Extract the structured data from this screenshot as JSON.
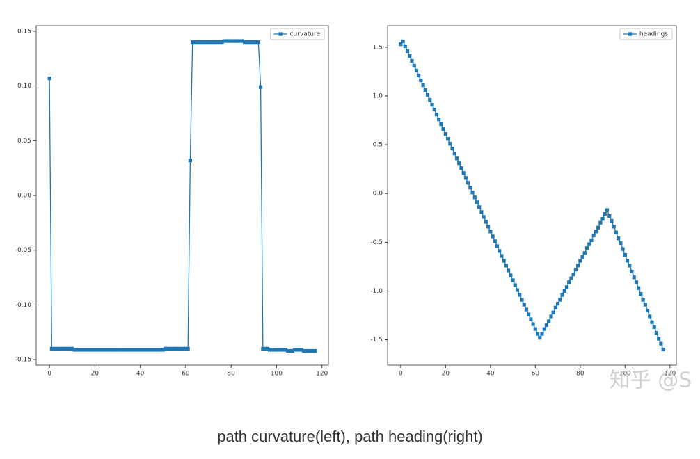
{
  "chart_data": [
    {
      "type": "line",
      "x": [
        0,
        1,
        2,
        3,
        4,
        5,
        6,
        7,
        8,
        9,
        10,
        11,
        12,
        13,
        14,
        15,
        16,
        17,
        18,
        19,
        20,
        21,
        22,
        23,
        24,
        25,
        26,
        27,
        28,
        29,
        30,
        31,
        32,
        33,
        34,
        35,
        36,
        37,
        38,
        39,
        40,
        41,
        42,
        43,
        44,
        45,
        46,
        47,
        48,
        49,
        50,
        51,
        52,
        53,
        54,
        55,
        56,
        57,
        58,
        59,
        60,
        61,
        62,
        63,
        64,
        65,
        66,
        67,
        68,
        69,
        70,
        71,
        72,
        73,
        74,
        75,
        76,
        77,
        78,
        79,
        80,
        81,
        82,
        83,
        84,
        85,
        86,
        87,
        88,
        89,
        90,
        91,
        92,
        93,
        94,
        95,
        96,
        97,
        98,
        99,
        100,
        101,
        102,
        103,
        104,
        105,
        106,
        107,
        108,
        109,
        110,
        111,
        112,
        113,
        114,
        115,
        116,
        117
      ],
      "series": [
        {
          "name": "curvature",
          "color": "#1f77b4",
          "values": [
            0.107,
            -0.14,
            -0.14,
            -0.14,
            -0.14,
            -0.14,
            -0.14,
            -0.14,
            -0.14,
            -0.14,
            -0.14,
            -0.141,
            -0.141,
            -0.141,
            -0.141,
            -0.141,
            -0.141,
            -0.141,
            -0.141,
            -0.141,
            -0.141,
            -0.141,
            -0.141,
            -0.141,
            -0.141,
            -0.141,
            -0.141,
            -0.141,
            -0.141,
            -0.141,
            -0.141,
            -0.141,
            -0.141,
            -0.141,
            -0.141,
            -0.141,
            -0.141,
            -0.141,
            -0.141,
            -0.141,
            -0.141,
            -0.141,
            -0.141,
            -0.141,
            -0.141,
            -0.141,
            -0.141,
            -0.141,
            -0.141,
            -0.141,
            -0.141,
            -0.14,
            -0.14,
            -0.14,
            -0.14,
            -0.14,
            -0.14,
            -0.14,
            -0.14,
            -0.14,
            -0.14,
            -0.14,
            0.032,
            0.14,
            0.14,
            0.14,
            0.14,
            0.14,
            0.14,
            0.14,
            0.14,
            0.14,
            0.14,
            0.14,
            0.14,
            0.14,
            0.14,
            0.141,
            0.141,
            0.141,
            0.141,
            0.141,
            0.141,
            0.141,
            0.141,
            0.141,
            0.14,
            0.14,
            0.14,
            0.14,
            0.14,
            0.14,
            0.14,
            0.099,
            -0.14,
            -0.14,
            -0.14,
            -0.141,
            -0.141,
            -0.141,
            -0.141,
            -0.141,
            -0.141,
            -0.141,
            -0.141,
            -0.142,
            -0.142,
            -0.142,
            -0.141,
            -0.141,
            -0.141,
            -0.141,
            -0.142,
            -0.142,
            -0.142,
            -0.142,
            -0.142,
            -0.142
          ]
        }
      ],
      "xlim": [
        -5.85,
        122.85
      ],
      "ylim": [
        -0.155,
        0.155
      ],
      "xticks": [
        0,
        20,
        40,
        60,
        80,
        100,
        120
      ],
      "yticks": [
        0.15,
        {
          "value": 0.1,
          "label": "0.10"
        },
        0.05,
        {
          "value": 0,
          "label": "0.00"
        },
        -0.05,
        {
          "value": -0.1,
          "label": "-0.10"
        },
        -0.15
      ],
      "legend": "upper right",
      "grid": false
    },
    {
      "type": "line",
      "x": [
        0,
        1,
        2,
        3,
        4,
        5,
        6,
        7,
        8,
        9,
        10,
        11,
        12,
        13,
        14,
        15,
        16,
        17,
        18,
        19,
        20,
        21,
        22,
        23,
        24,
        25,
        26,
        27,
        28,
        29,
        30,
        31,
        32,
        33,
        34,
        35,
        36,
        37,
        38,
        39,
        40,
        41,
        42,
        43,
        44,
        45,
        46,
        47,
        48,
        49,
        50,
        51,
        52,
        53,
        54,
        55,
        56,
        57,
        58,
        59,
        60,
        61,
        62,
        63,
        64,
        65,
        66,
        67,
        68,
        69,
        70,
        71,
        72,
        73,
        74,
        75,
        76,
        77,
        78,
        79,
        80,
        81,
        82,
        83,
        84,
        85,
        86,
        87,
        88,
        89,
        90,
        91,
        92,
        93,
        94,
        95,
        96,
        97,
        98,
        99,
        100,
        101,
        102,
        103,
        104,
        105,
        106,
        107,
        108,
        109,
        110,
        111,
        112,
        113,
        114,
        115,
        116,
        117
      ],
      "series": [
        {
          "name": "headings",
          "color": "#1f77b4",
          "values": [
            1.53,
            1.56,
            1.51,
            1.46,
            1.41,
            1.36,
            1.31,
            1.26,
            1.21,
            1.16,
            1.11,
            1.06,
            1.01,
            0.96,
            0.91,
            0.86,
            0.81,
            0.76,
            0.71,
            0.66,
            0.61,
            0.56,
            0.51,
            0.46,
            0.41,
            0.36,
            0.31,
            0.26,
            0.21,
            0.16,
            0.11,
            0.06,
            0.01,
            -0.04,
            -0.09,
            -0.14,
            -0.19,
            -0.24,
            -0.29,
            -0.34,
            -0.39,
            -0.44,
            -0.49,
            -0.54,
            -0.59,
            -0.64,
            -0.69,
            -0.74,
            -0.79,
            -0.84,
            -0.89,
            -0.94,
            -0.99,
            -1.04,
            -1.09,
            -1.14,
            -1.19,
            -1.24,
            -1.29,
            -1.34,
            -1.39,
            -1.44,
            -1.48,
            -1.44,
            -1.39,
            -1.35,
            -1.31,
            -1.26,
            -1.22,
            -1.17,
            -1.13,
            -1.09,
            -1.04,
            -1.0,
            -0.96,
            -0.91,
            -0.87,
            -0.83,
            -0.78,
            -0.74,
            -0.69,
            -0.65,
            -0.61,
            -0.56,
            -0.52,
            -0.48,
            -0.43,
            -0.39,
            -0.35,
            -0.3,
            -0.26,
            -0.21,
            -0.17,
            -0.23,
            -0.28,
            -0.34,
            -0.4,
            -0.46,
            -0.51,
            -0.57,
            -0.63,
            -0.69,
            -0.74,
            -0.8,
            -0.86,
            -0.91,
            -0.97,
            -1.03,
            -1.09,
            -1.14,
            -1.2,
            -1.26,
            -1.32,
            -1.37,
            -1.43,
            -1.49,
            -1.54,
            -1.6
          ]
        }
      ],
      "xlim": [
        -5.85,
        122.85
      ],
      "ylim": [
        -1.76,
        1.72
      ],
      "xticks": [
        0,
        20,
        40,
        60,
        80,
        100,
        120
      ],
      "yticks": [
        1.5,
        {
          "value": 1,
          "label": "1.0"
        },
        0.5,
        {
          "value": 0,
          "label": "0.0"
        },
        -0.5,
        {
          "value": -1,
          "label": "-1.0"
        },
        -1.5
      ],
      "legend": "upper right",
      "grid": false
    }
  ],
  "watermark": "知乎 @S",
  "caption": "path curvature(left), path heading(right)"
}
